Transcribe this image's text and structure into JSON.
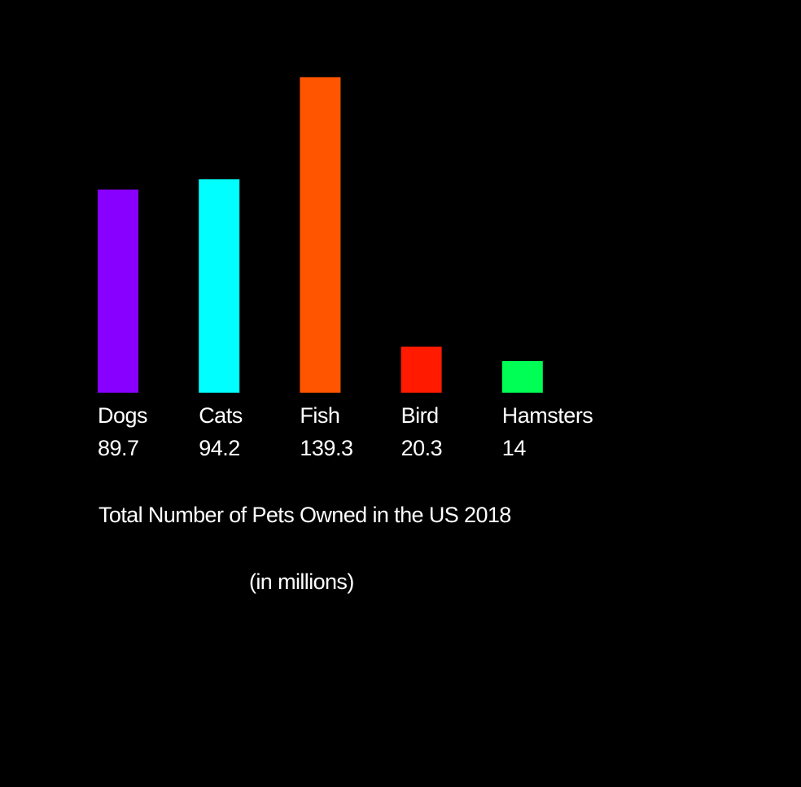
{
  "chart_data": {
    "type": "bar",
    "categories": [
      "Dogs",
      "Cats",
      "Fish",
      "Bird",
      "Hamsters"
    ],
    "values": [
      89.7,
      94.2,
      139.3,
      20.3,
      14
    ],
    "value_labels": [
      "89.7",
      "94.2",
      "139.3",
      "20.3",
      "14"
    ],
    "colors": [
      "#8800ff",
      "#00ffff",
      "#ff5500",
      "#ff1a00",
      "#00ff55"
    ],
    "title": "Total Number of Pets Owned in the US 2018",
    "subtitle": "(in millions)",
    "xlabel": "",
    "ylabel": "",
    "grid": false,
    "background": "#000000",
    "text_color": "#ffffff"
  }
}
